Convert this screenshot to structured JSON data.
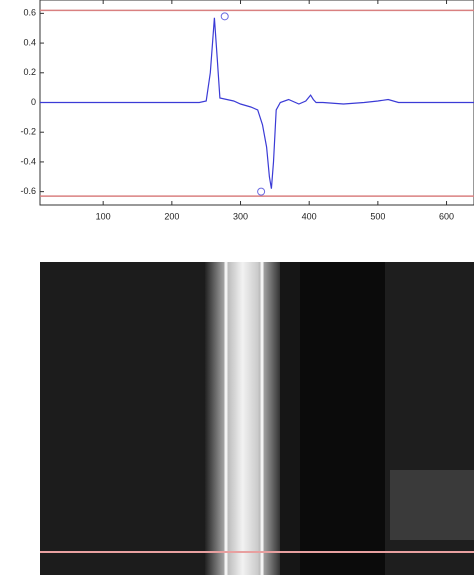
{
  "chart_data": {
    "type": "line",
    "x": [
      8,
      100,
      200,
      240,
      250,
      256,
      262,
      266,
      270,
      280,
      290,
      300,
      315,
      325,
      332,
      338,
      342,
      345,
      348,
      352,
      358,
      370,
      385,
      395,
      402,
      406,
      410,
      420,
      450,
      480,
      500,
      515,
      530,
      560,
      600,
      640
    ],
    "series": [
      {
        "color": "#3b3bd6",
        "values": [
          0,
          0,
          0,
          0,
          0.01,
          0.2,
          0.57,
          0.3,
          0.03,
          0.02,
          0.01,
          -0.01,
          -0.03,
          -0.05,
          -0.15,
          -0.3,
          -0.5,
          -0.58,
          -0.4,
          -0.05,
          0,
          0.02,
          -0.01,
          0.01,
          0.05,
          0.02,
          0,
          0,
          -0.01,
          0,
          0.01,
          0.02,
          0,
          0,
          0,
          0
        ]
      }
    ],
    "hlines": {
      "color": "#d98080",
      "values": [
        0.62,
        -0.63
      ]
    },
    "markers": {
      "color": "#6a6ae0",
      "x": [
        277,
        330
      ],
      "y": [
        0.58,
        -0.6
      ]
    },
    "xlim": [
      8,
      640
    ],
    "ylim": [
      -0.69,
      0.69
    ],
    "xticks": [
      100,
      200,
      300,
      400,
      500,
      600
    ],
    "yticks": [
      0.6,
      0.4,
      0.2,
      0,
      -0.2,
      -0.4,
      -0.6
    ]
  }
}
